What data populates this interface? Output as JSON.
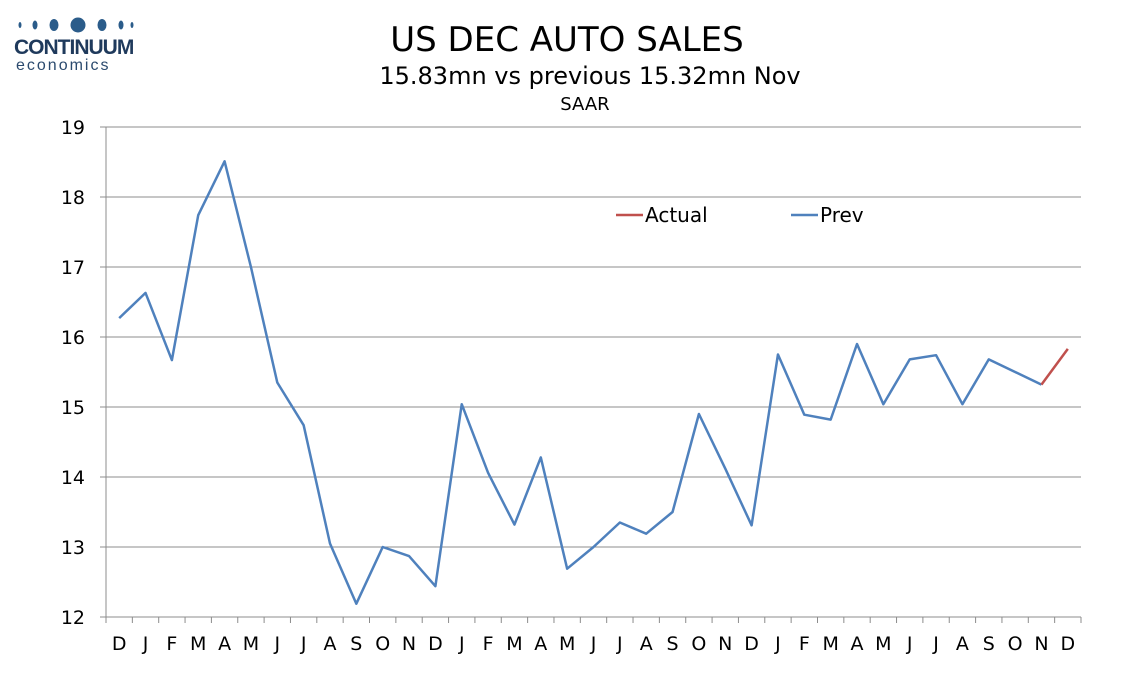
{
  "logo": {
    "name": "CONTINUUM",
    "sub": "economics",
    "color": "#1f3a5c"
  },
  "chart_data": {
    "type": "line",
    "title": "US DEC AUTO SALES",
    "subtitle": "15.83mn vs previous 15.32mn Nov",
    "unit_label": "SAAR",
    "xlabel": "",
    "ylabel": "",
    "ylim": [
      12,
      19
    ],
    "yticks": [
      "12",
      "13",
      "14",
      "15",
      "16",
      "17",
      "18",
      "19"
    ],
    "categories": [
      "D",
      "J",
      "F",
      "M",
      "A",
      "M",
      "J",
      "J",
      "A",
      "S",
      "O",
      "N",
      "D",
      "J",
      "F",
      "M",
      "A",
      "M",
      "J",
      "J",
      "A",
      "S",
      "O",
      "N",
      "D",
      "J",
      "F",
      "M",
      "A",
      "M",
      "J",
      "J",
      "A",
      "S",
      "O",
      "N",
      "D"
    ],
    "grid": "horizontal",
    "legend_position": "top-center",
    "series": [
      {
        "name": "Actual",
        "color": "#c0504d",
        "values": [
          null,
          null,
          null,
          null,
          null,
          null,
          null,
          null,
          null,
          null,
          null,
          null,
          null,
          null,
          null,
          null,
          null,
          null,
          null,
          null,
          null,
          null,
          null,
          null,
          null,
          null,
          null,
          null,
          null,
          null,
          null,
          null,
          null,
          null,
          null,
          15.32,
          15.83
        ]
      },
      {
        "name": "Prev",
        "color": "#4f81bd",
        "values": [
          16.27,
          16.63,
          15.67,
          17.74,
          18.51,
          17.0,
          15.35,
          14.74,
          13.05,
          12.19,
          13.0,
          12.87,
          12.44,
          15.04,
          14.06,
          13.32,
          14.28,
          12.69,
          13.0,
          13.35,
          13.19,
          13.5,
          14.9,
          14.12,
          13.31,
          15.75,
          14.89,
          14.82,
          15.9,
          15.04,
          15.68,
          15.74,
          15.04,
          15.68,
          15.5,
          15.32,
          null
        ]
      }
    ]
  }
}
